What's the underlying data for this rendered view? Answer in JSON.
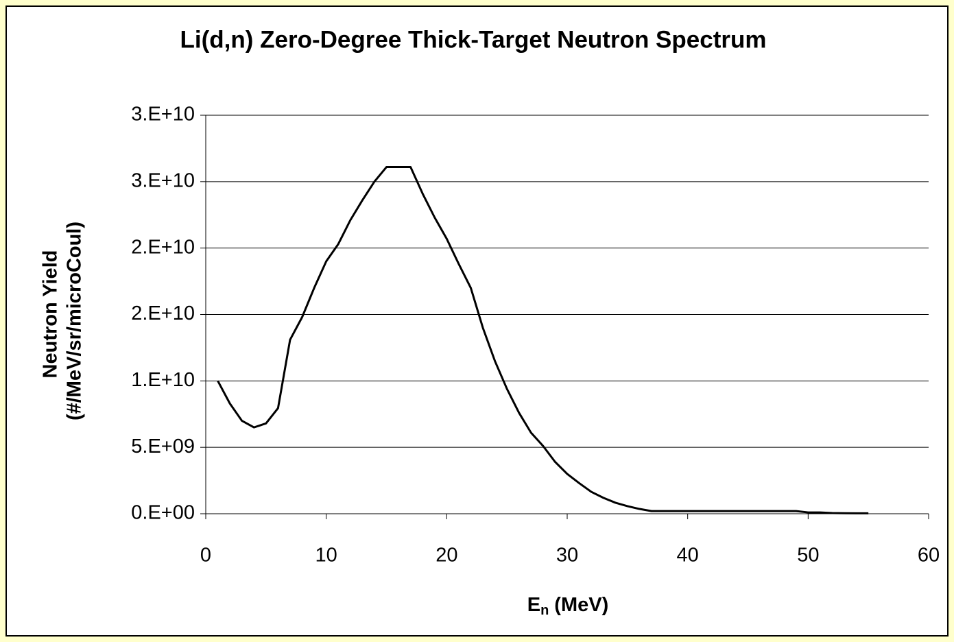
{
  "chart_data": {
    "type": "line",
    "title": "Li(d,n) Zero-Degree Thick-Target Neutron Spectrum",
    "y_label": [
      "Neutron Yield",
      "(#/MeV/sr/microCoul)"
    ],
    "x_label": "E",
    "x_label_subscript": "n",
    "x_label_suffix": "(MeV)",
    "x": [
      1,
      2,
      3,
      4,
      5,
      6,
      7,
      8,
      9,
      10,
      11,
      12,
      13,
      14,
      15,
      16,
      17,
      18,
      19,
      20,
      21,
      22,
      23,
      24,
      25,
      26,
      27,
      28,
      29,
      30,
      31,
      32,
      33,
      34,
      35,
      36,
      37,
      38,
      39,
      40,
      41,
      42,
      43,
      44,
      45,
      46,
      47,
      48,
      49,
      50,
      51,
      52,
      53,
      54,
      55
    ],
    "values": [
      10000000000.0,
      8300000000.0,
      7000000000.0,
      6500000000.0,
      6800000000.0,
      7950000000.0,
      13100000000.0,
      14800000000.0,
      17000000000.0,
      19000000000.0,
      20300000000.0,
      22100000000.0,
      23600000000.0,
      25000000000.0,
      26100000000.0,
      26100000000.0,
      26100000000.0,
      24100000000.0,
      22300000000.0,
      20700000000.0,
      18800000000.0,
      17000000000.0,
      14000000000.0,
      11500000000.0,
      9400000000.0,
      7600000000.0,
      6100000000.0,
      5100000000.0,
      3900000000.0,
      3000000000.0,
      2300000000.0,
      1650000000.0,
      1200000000.0,
      830000000.0,
      570000000.0,
      360000000.0,
      200000000.0,
      200000000.0,
      200000000.0,
      200000000.0,
      200000000.0,
      200000000.0,
      200000000.0,
      200000000.0,
      200000000.0,
      200000000.0,
      200000000.0,
      200000000.0,
      200000000.0,
      100000000.0,
      100000000.0,
      50000000.0,
      40000000.0,
      30000000.0,
      30000000.0
    ],
    "color": "#000000",
    "xlim": [
      0,
      60
    ],
    "xticks": [
      0,
      10,
      20,
      30,
      40,
      50,
      60
    ],
    "ylim": [
      0,
      30000000000.0
    ],
    "yticks": [
      {
        "value": 0,
        "label": "0.E+00"
      },
      {
        "value": 5000000000.0,
        "label": "5.E+09"
      },
      {
        "value": 10000000000.0,
        "label": "1.E+10"
      },
      {
        "value": 15000000000.0,
        "label": "2.E+10"
      },
      {
        "value": 20000000000.0,
        "label": "2.E+10"
      },
      {
        "value": 25000000000.0,
        "label": "3.E+10"
      },
      {
        "value": 30000000000.0,
        "label": "3.E+10"
      }
    ],
    "grid": true
  }
}
